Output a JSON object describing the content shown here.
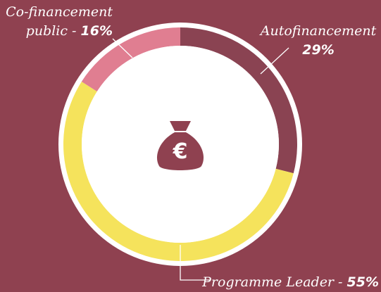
{
  "chart_data": {
    "type": "donut",
    "categories": [
      "Autofinancement",
      "Programme Leader",
      "Co-financement public"
    ],
    "values": [
      29,
      55,
      16
    ],
    "value_labels": [
      "29%",
      "55%",
      "16%"
    ],
    "colors": [
      "#8a4352",
      "#f5e35c",
      "#e07e91"
    ]
  }
}
